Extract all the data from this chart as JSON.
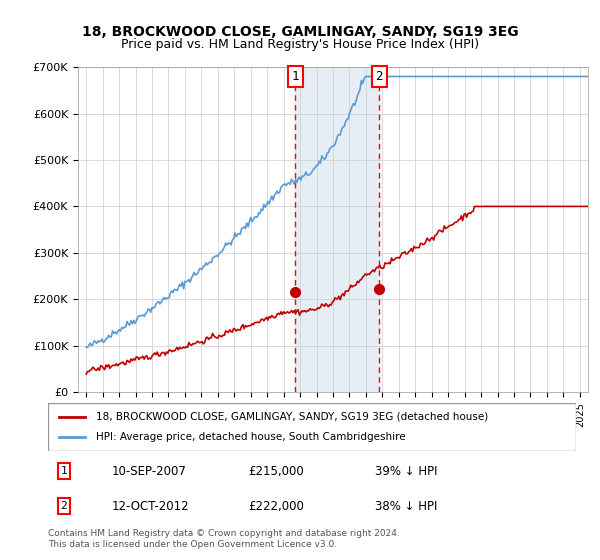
{
  "title": "18, BROCKWOOD CLOSE, GAMLINGAY, SANDY, SG19 3EG",
  "subtitle": "Price paid vs. HM Land Registry's House Price Index (HPI)",
  "legend_line1": "18, BROCKWOOD CLOSE, GAMLINGAY, SANDY, SG19 3EG (detached house)",
  "legend_line2": "HPI: Average price, detached house, South Cambridgeshire",
  "transaction1_date": "10-SEP-2007",
  "transaction1_price": "£215,000",
  "transaction1_hpi": "39% ↓ HPI",
  "transaction2_date": "12-OCT-2012",
  "transaction2_price": "£222,000",
  "transaction2_hpi": "38% ↓ HPI",
  "footnote": "Contains HM Land Registry data © Crown copyright and database right 2024.\nThis data is licensed under the Open Government Licence v3.0.",
  "hpi_color": "#5b9bd5",
  "price_color": "#c00000",
  "background_color": "#ffffff",
  "shaded_region_color": "#dce6f1",
  "transaction1_x": 2007.7,
  "transaction2_x": 2012.8,
  "ylim_min": 0,
  "ylim_max": 700000,
  "xlim_min": 1994.5,
  "xlim_max": 2025.5
}
